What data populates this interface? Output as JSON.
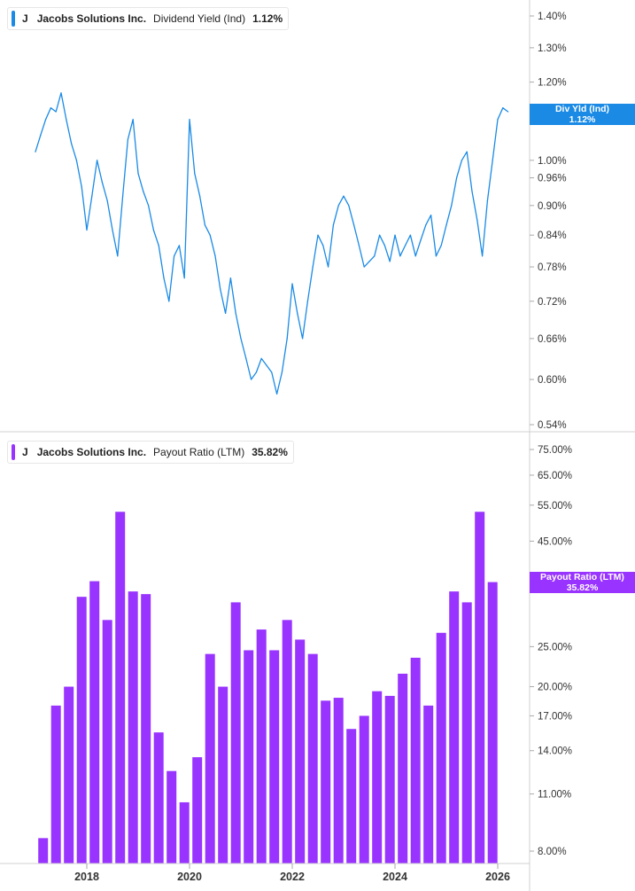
{
  "chart_data": [
    {
      "type": "line",
      "legend": {
        "ticker": "J",
        "company": "Jacobs Solutions Inc.",
        "metric": "Dividend Yield (Ind)",
        "value": "1.12%"
      },
      "flag": {
        "label": "Div Yld (Ind)",
        "value": "1.12%"
      },
      "color": "#1a8ae5",
      "yscale": "log",
      "ylim": [
        0.53,
        1.45
      ],
      "ytick_values": [
        0.54,
        0.6,
        0.66,
        0.72,
        0.78,
        0.84,
        0.9,
        0.96,
        1.0,
        1.2,
        1.3,
        1.4
      ],
      "ytick_labels": [
        "0.54%",
        "0.60%",
        "0.66%",
        "0.72%",
        "0.78%",
        "0.84%",
        "0.90%",
        "0.96%",
        "1.00%",
        "1.20%",
        "1.30%",
        "1.40%"
      ],
      "x": [
        2017.0,
        2017.1,
        2017.2,
        2017.3,
        2017.4,
        2017.5,
        2017.6,
        2017.7,
        2017.8,
        2017.9,
        2018.0,
        2018.1,
        2018.2,
        2018.3,
        2018.4,
        2018.5,
        2018.6,
        2018.7,
        2018.8,
        2018.9,
        2019.0,
        2019.1,
        2019.2,
        2019.3,
        2019.4,
        2019.5,
        2019.6,
        2019.7,
        2019.8,
        2019.9,
        2020.0,
        2020.1,
        2020.2,
        2020.3,
        2020.4,
        2020.5,
        2020.6,
        2020.7,
        2020.8,
        2020.9,
        2021.0,
        2021.1,
        2021.2,
        2021.3,
        2021.4,
        2021.5,
        2021.6,
        2021.7,
        2021.8,
        2021.9,
        2022.0,
        2022.1,
        2022.2,
        2022.3,
        2022.4,
        2022.5,
        2022.6,
        2022.7,
        2022.8,
        2022.9,
        2023.0,
        2023.1,
        2023.2,
        2023.3,
        2023.4,
        2023.5,
        2023.6,
        2023.7,
        2023.8,
        2023.9,
        2024.0,
        2024.1,
        2024.2,
        2024.3,
        2024.4,
        2024.5,
        2024.6,
        2024.7,
        2024.8,
        2024.9,
        2025.0,
        2025.1,
        2025.2,
        2025.3,
        2025.4,
        2025.5,
        2025.6,
        2025.7,
        2025.8,
        2025.9,
        2026.0,
        2026.1,
        2026.2
      ],
      "y": [
        1.02,
        1.06,
        1.1,
        1.13,
        1.12,
        1.17,
        1.1,
        1.04,
        1.0,
        0.94,
        0.85,
        0.92,
        1.0,
        0.95,
        0.91,
        0.85,
        0.8,
        0.92,
        1.05,
        1.1,
        0.97,
        0.93,
        0.9,
        0.85,
        0.82,
        0.76,
        0.72,
        0.8,
        0.82,
        0.76,
        1.1,
        0.97,
        0.92,
        0.86,
        0.84,
        0.8,
        0.74,
        0.7,
        0.76,
        0.7,
        0.66,
        0.63,
        0.6,
        0.61,
        0.63,
        0.62,
        0.61,
        0.58,
        0.61,
        0.66,
        0.75,
        0.7,
        0.66,
        0.72,
        0.78,
        0.84,
        0.82,
        0.78,
        0.86,
        0.9,
        0.92,
        0.9,
        0.86,
        0.82,
        0.78,
        0.79,
        0.8,
        0.84,
        0.82,
        0.79,
        0.84,
        0.8,
        0.82,
        0.84,
        0.8,
        0.83,
        0.86,
        0.88,
        0.8,
        0.82,
        0.86,
        0.9,
        0.96,
        1.0,
        1.02,
        0.93,
        0.87,
        0.8,
        0.91,
        1.0,
        1.1,
        1.13,
        1.12
      ]
    },
    {
      "type": "bar",
      "legend": {
        "ticker": "J",
        "company": "Jacobs Solutions Inc.",
        "metric": "Payout Ratio (LTM)",
        "value": "35.82%"
      },
      "flag": {
        "label": "Payout Ratio (LTM)",
        "value": "35.82%"
      },
      "color": "#9933ff",
      "yscale": "log",
      "ylim": [
        7.6,
        80
      ],
      "ytick_values": [
        8,
        11,
        14,
        17,
        20,
        25,
        45,
        55,
        65,
        75
      ],
      "ytick_labels": [
        "8.00%",
        "11.00%",
        "14.00%",
        "17.00%",
        "20.00%",
        "25.00%",
        "45.00%",
        "55.00%",
        "65.00%",
        "75.00%"
      ],
      "x": [
        2017.15,
        2017.4,
        2017.65,
        2017.9,
        2018.15,
        2018.4,
        2018.65,
        2018.9,
        2019.15,
        2019.4,
        2019.65,
        2019.9,
        2020.15,
        2020.4,
        2020.65,
        2020.9,
        2021.15,
        2021.4,
        2021.65,
        2021.9,
        2022.15,
        2022.4,
        2022.65,
        2022.9,
        2023.15,
        2023.4,
        2023.65,
        2023.9,
        2024.15,
        2024.4,
        2024.65,
        2024.9,
        2025.15,
        2025.4,
        2025.65,
        2025.9
      ],
      "values": [
        8.6,
        18.0,
        20.0,
        33.0,
        36.0,
        29.0,
        53.0,
        34.0,
        33.5,
        15.5,
        12.5,
        10.5,
        13.5,
        24.0,
        20.0,
        32.0,
        24.5,
        27.5,
        24.5,
        29.0,
        26.0,
        24.0,
        18.5,
        18.8,
        15.8,
        17.0,
        19.5,
        19.0,
        21.5,
        23.5,
        18.0,
        27.0,
        34.0,
        32.0,
        53.0,
        35.82
      ]
    }
  ],
  "x_axis": {
    "ticks": [
      2018,
      2020,
      2022,
      2024,
      2026
    ],
    "labels": [
      "2018",
      "2020",
      "2022",
      "2024",
      "2026"
    ]
  }
}
